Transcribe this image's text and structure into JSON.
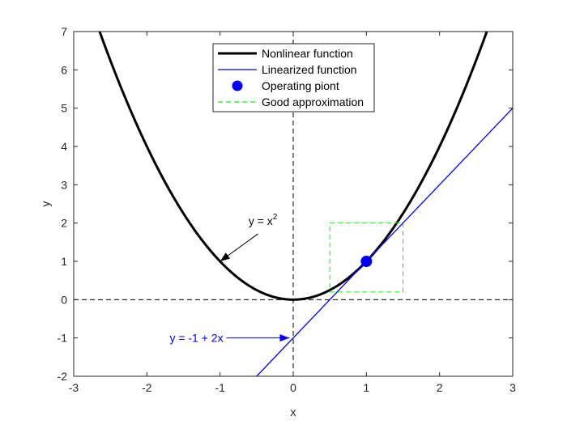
{
  "chart_data": {
    "type": "line",
    "title": "",
    "xlabel": "x",
    "ylabel": "y",
    "xlim": [
      -3,
      3
    ],
    "ylim": [
      -2,
      7
    ],
    "xticks": [
      -3,
      -2,
      -1,
      0,
      1,
      2,
      3
    ],
    "yticks": [
      -2,
      -1,
      0,
      1,
      2,
      3,
      4,
      5,
      6,
      7
    ],
    "grid": false,
    "legend": {
      "placement": "top-center",
      "entries": [
        {
          "label": "Nonlinear function",
          "style": "line",
          "color": "#000000"
        },
        {
          "label": "Linearized function",
          "style": "line",
          "color": "#0000ff"
        },
        {
          "label": "Operating piont",
          "style": "marker",
          "color": "#0000ff"
        },
        {
          "label": "Good approximation",
          "style": "dashed",
          "color": "#00ff00"
        }
      ]
    },
    "series": [
      {
        "name": "Nonlinear function",
        "function": "y = x^2",
        "x": [
          -2.65,
          -2.5,
          -2.25,
          -2.0,
          -1.75,
          -1.5,
          -1.25,
          -1.0,
          -0.75,
          -0.5,
          -0.25,
          0.0,
          0.25,
          0.5,
          0.75,
          1.0,
          1.25,
          1.5,
          1.75,
          2.0,
          2.25,
          2.5,
          2.65
        ],
        "y": [
          7.02,
          6.25,
          5.06,
          4.0,
          3.06,
          2.25,
          1.56,
          1.0,
          0.56,
          0.25,
          0.06,
          0.0,
          0.06,
          0.25,
          0.56,
          1.0,
          1.56,
          2.25,
          3.06,
          4.0,
          5.06,
          6.25,
          7.02
        ],
        "color": "#000000"
      },
      {
        "name": "Linearized function",
        "function": "y = -1 + 2x",
        "x": [
          -0.5,
          3.0
        ],
        "y": [
          -2.0,
          5.0
        ],
        "color": "#0000ff"
      },
      {
        "name": "Operating piont",
        "x": [
          1
        ],
        "y": [
          1
        ],
        "color": "#0000ff"
      },
      {
        "name": "Good approximation",
        "x": [
          0.5,
          1.5,
          1.5,
          0.5,
          0.5
        ],
        "y": [
          0.2,
          0.2,
          2.0,
          2.0,
          0.2
        ],
        "color": "#00ff00"
      }
    ],
    "reference_lines": [
      {
        "axis": "y",
        "value": 0,
        "color": "#000000"
      },
      {
        "axis": "x",
        "value": 0,
        "color": "#000000"
      }
    ],
    "annotations": [
      {
        "text": "y = x",
        "superscript": "2",
        "arrow_to": [
          -1.0,
          1.0
        ],
        "text_at": [
          -0.5,
          1.95
        ],
        "color": "#000000"
      },
      {
        "text": "y = -1 + 2x",
        "arrow_to": [
          -0.05,
          -1.0
        ],
        "text_at": [
          -1.2,
          -1.0
        ],
        "color": "#0000ff"
      }
    ]
  }
}
